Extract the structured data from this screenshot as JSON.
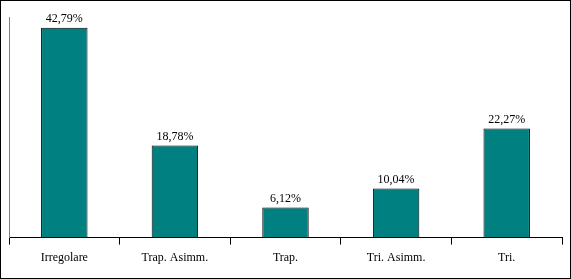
{
  "chart_data": {
    "type": "bar",
    "categories": [
      "Irregolare",
      "Trap. Asimm.",
      "Trap.",
      "Tri. Asimm.",
      "Tri."
    ],
    "values": [
      42.79,
      18.78,
      6.12,
      10.04,
      22.27
    ],
    "value_labels": [
      "42,79%",
      "18,78%",
      "6,12%",
      "10,04%",
      "22,27%"
    ],
    "color": "#008080",
    "ylim": [
      0,
      45
    ],
    "data_labels": true,
    "tick_labels": "x",
    "grid": false
  }
}
